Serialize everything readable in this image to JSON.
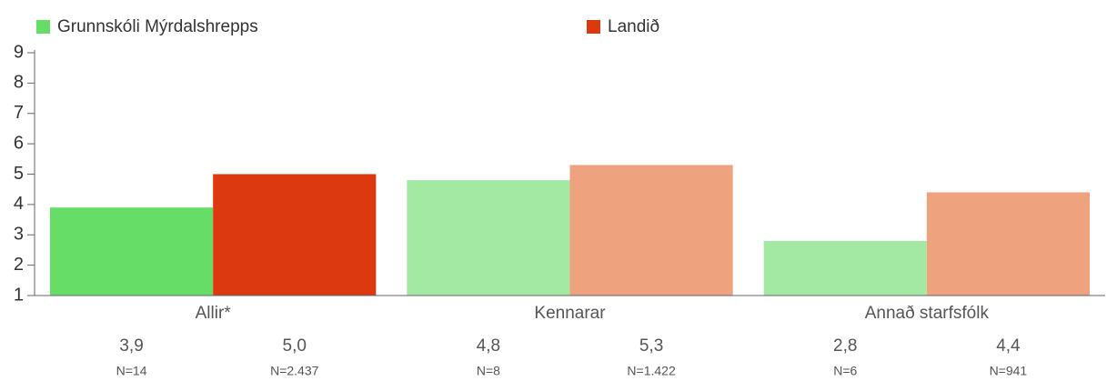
{
  "chart_data": {
    "type": "bar",
    "categories": [
      "Allir*",
      "Kennarar",
      "Annað starfsfólk"
    ],
    "series": [
      {
        "name": "Grunnskóli Mýrdalshrepps",
        "color": "#66dd66",
        "colors": [
          "#66dd66",
          "#a3e9a3",
          "#a3e9a3"
        ],
        "values": [
          3.9,
          4.8,
          2.8
        ],
        "value_labels": [
          "3,9",
          "4,8",
          "2,8"
        ],
        "n_labels": [
          "N=14",
          "N=8",
          "N=6"
        ]
      },
      {
        "name": "Landið",
        "color": "#dd3911",
        "colors": [
          "#dd3911",
          "#efa27e",
          "#efa27e"
        ],
        "values": [
          5.0,
          5.3,
          4.4
        ],
        "value_labels": [
          "5,0",
          "5,3",
          "4,4"
        ],
        "n_labels": [
          "N=2.437",
          "N=1.422",
          "N=941"
        ]
      }
    ],
    "ylim": [
      1,
      9
    ],
    "yticks": [
      1,
      2,
      3,
      4,
      5,
      6,
      7,
      8,
      9
    ]
  }
}
